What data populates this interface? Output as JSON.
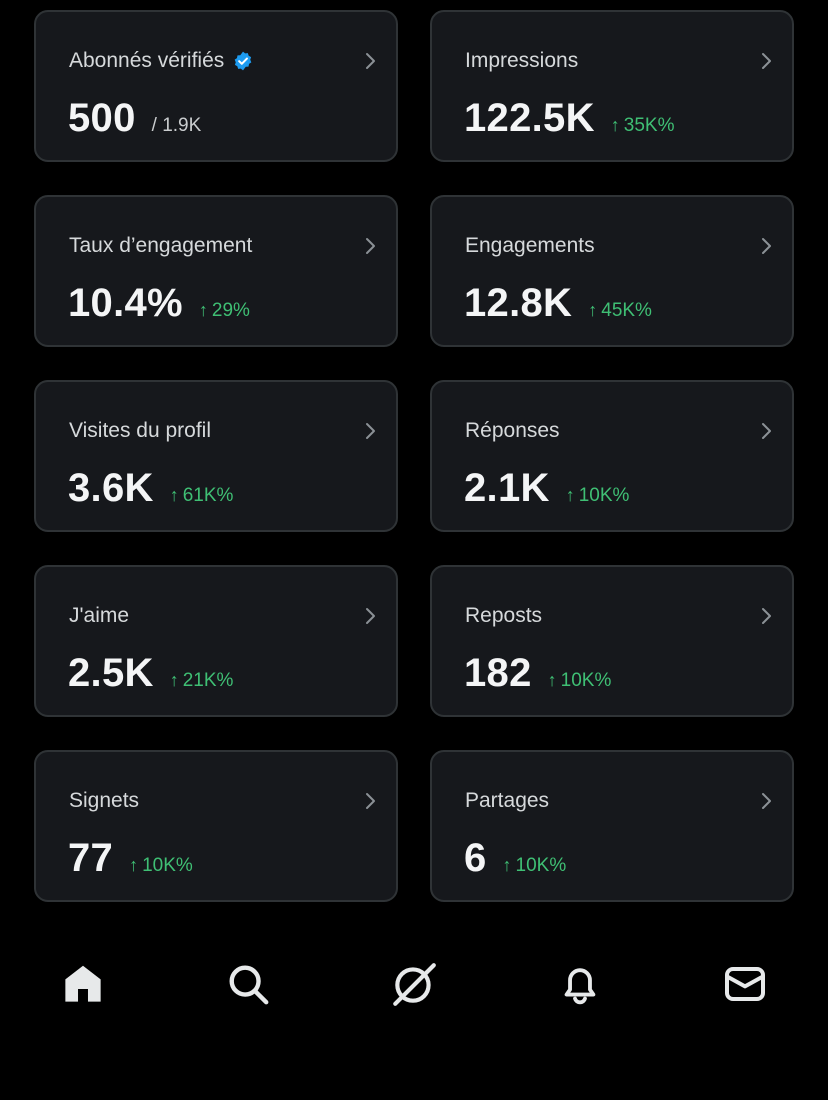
{
  "cards": [
    {
      "title": "Abonnés vérifiés",
      "value": "500",
      "sub": "/ 1.9K",
      "delta": "",
      "verified": true
    },
    {
      "title": "Impressions",
      "value": "122.5K",
      "sub": "",
      "delta": "35K%"
    },
    {
      "title": "Taux d’engagement",
      "value": "10.4%",
      "sub": "",
      "delta": "29%"
    },
    {
      "title": "Engagements",
      "value": "12.8K",
      "sub": "",
      "delta": "45K%"
    },
    {
      "title": "Visites du profil",
      "value": "3.6K",
      "sub": "",
      "delta": "61K%"
    },
    {
      "title": "Réponses",
      "value": "2.1K",
      "sub": "",
      "delta": "10K%"
    },
    {
      "title": "J'aime",
      "value": "2.5K",
      "sub": "",
      "delta": "21K%"
    },
    {
      "title": "Reposts",
      "value": "182",
      "sub": "",
      "delta": "10K%"
    },
    {
      "title": "Signets",
      "value": "77",
      "sub": "",
      "delta": "10K%"
    },
    {
      "title": "Partages",
      "value": "6",
      "sub": "",
      "delta": "10K%"
    }
  ],
  "icons": {
    "verified": "verified-badge-icon",
    "chevron": "chevron-right-icon",
    "delta": "arrow-up-icon"
  },
  "colors": {
    "background": "#000000",
    "card_background": "#16181c",
    "card_border": "#2f3336",
    "positive": "#3fbf74",
    "verified": "#1d9bf0"
  },
  "bottom_nav": [
    "home-icon",
    "search-icon",
    "grok-icon",
    "notifications-icon",
    "messages-icon"
  ]
}
